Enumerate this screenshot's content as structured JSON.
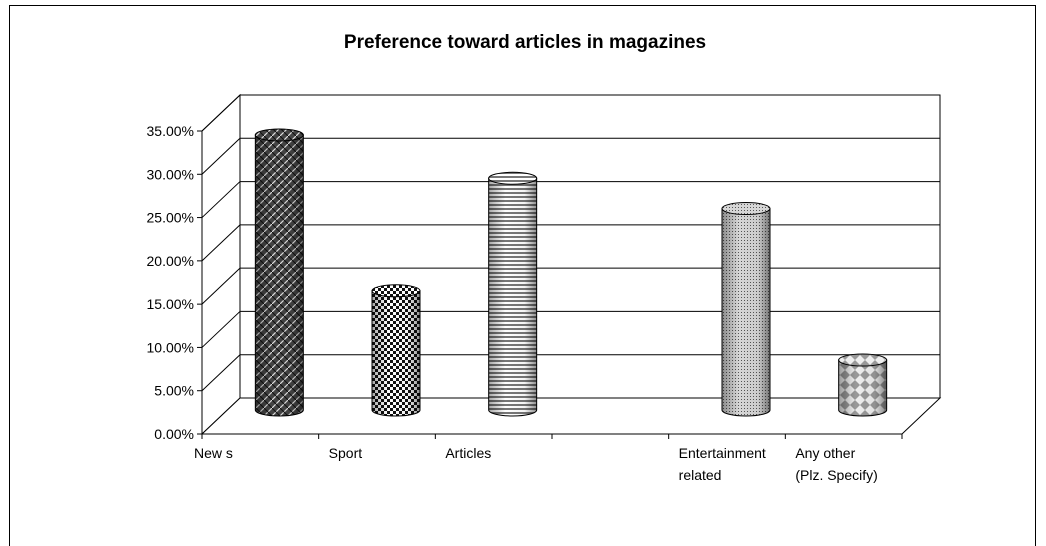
{
  "chart_data": {
    "type": "bar",
    "title": "Preference toward articles in magazines",
    "xlabel": "",
    "ylabel": "",
    "ylim": [
      0,
      0.35
    ],
    "y_ticks": [
      "0.00%",
      "5.00%",
      "10.00%",
      "15.00%",
      "20.00%",
      "25.00%",
      "30.00%",
      "35.00%"
    ],
    "categories": [
      [
        "New s"
      ],
      [
        "Sport"
      ],
      [
        "Articles"
      ],
      [
        ""
      ],
      [
        "Entertainment",
        "related"
      ],
      [
        "Any other",
        "(Plz. Specify)"
      ]
    ],
    "values": [
      0.32,
      0.14,
      0.27,
      null,
      0.235,
      0.06
    ],
    "grid": true,
    "legend": "none",
    "style": "3d-cylinder"
  }
}
